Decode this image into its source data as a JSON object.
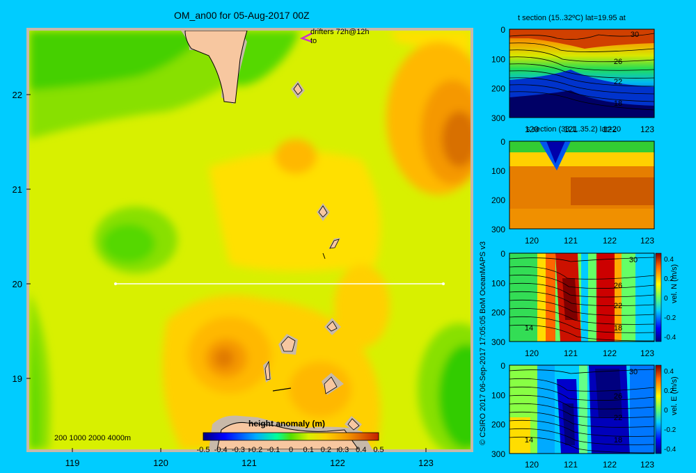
{
  "title": "OM_an00 for 05-Aug-2017 00Z",
  "credit": "© CSIRO 2017   06-Sep-2017 17:05:05 BoM OceanMAPS v3",
  "colors": {
    "background": "#00ccff",
    "land": "#f7c7a0",
    "shelf": "#c8b9a9",
    "drifter": "#cc33cc"
  },
  "chart_data": [
    {
      "type": "heatmap",
      "title": "OM_an00 for 05-Aug-2017 00Z",
      "variable": "height anomaly (m)",
      "x_ticks": [
        "119",
        "120",
        "121",
        "122",
        "123"
      ],
      "y_ticks": [
        "22",
        "21",
        "20",
        "19"
      ],
      "xlim": [
        118.5,
        123.5
      ],
      "ylim": [
        18.2,
        22.7
      ],
      "colorbar": {
        "label": "height anomaly (m)",
        "ticks": [
          "-0.5",
          "-0.4",
          "-0.3",
          "-0.2",
          "-0.1",
          "0",
          "0.1",
          "0.2",
          "0.3",
          "0.4",
          "0.5"
        ],
        "range": [
          -0.5,
          0.5
        ]
      },
      "depth_legend": "200  1000  2000  4000m",
      "drifter_label": "drifters 72h@12h",
      "drifter_sub": "to",
      "section_line": {
        "lat": 20,
        "lon_start": 119.5,
        "lon_end": 123.2
      }
    },
    {
      "type": "heatmap",
      "title": "t section (15..32ºC) lat=19.95 at",
      "variable": "temperature",
      "x_ticks": [
        "120",
        "121",
        "122",
        "123"
      ],
      "y_ticks": [
        "0",
        "100",
        "200",
        "300"
      ],
      "contour_labels": [
        "30",
        "26",
        "22",
        "18"
      ]
    },
    {
      "type": "heatmap",
      "title": "s section (33.1..35.2) lat=20",
      "variable": "salinity",
      "x_ticks": [
        "120",
        "121",
        "122",
        "123"
      ],
      "y_ticks": [
        "0",
        "100",
        "200",
        "300"
      ]
    },
    {
      "type": "heatmap",
      "title": "",
      "variable": "vel. N (m/s)",
      "x_ticks": [
        "120",
        "121",
        "122",
        "123"
      ],
      "y_ticks": [
        "0",
        "100",
        "200",
        "300"
      ],
      "contour_labels": [
        "30",
        "26",
        "22",
        "18",
        "14"
      ],
      "colorbar": {
        "label": "vel. N (m/s)",
        "ticks": [
          "0.4",
          "0.2",
          "0",
          "-0.2",
          "-0.4"
        ],
        "range": [
          -0.4,
          0.4
        ]
      }
    },
    {
      "type": "heatmap",
      "title": "",
      "variable": "vel. E (m/s)",
      "x_ticks": [
        "120",
        "121",
        "122",
        "123"
      ],
      "y_ticks": [
        "0",
        "100",
        "200",
        "300"
      ],
      "contour_labels": [
        "30",
        "26",
        "22",
        "18",
        "14"
      ],
      "colorbar": {
        "label": "vel. E (m/s)",
        "ticks": [
          "0.4",
          "0.2",
          "0",
          "-0.2",
          "-0.4"
        ],
        "range": [
          -0.4,
          0.4
        ]
      }
    }
  ]
}
